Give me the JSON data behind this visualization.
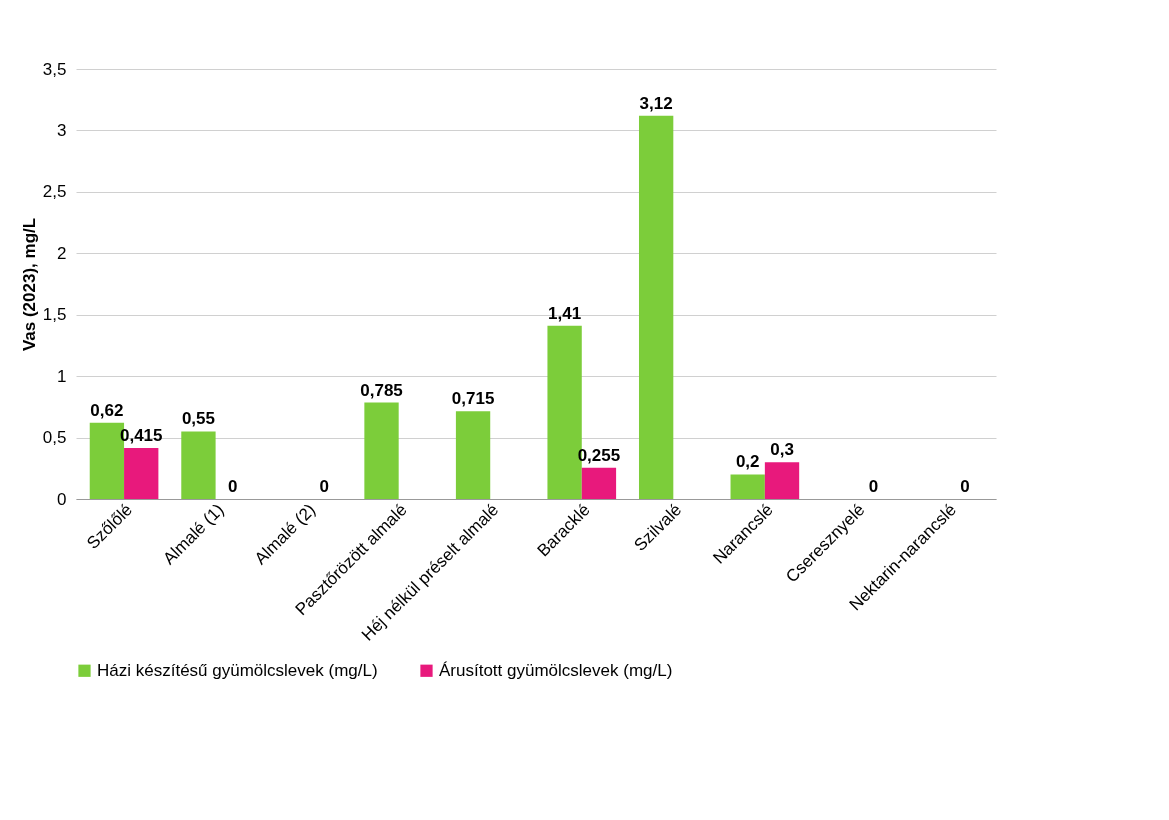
{
  "chart_data": {
    "type": "bar",
    "ylabel": "Vas (2023), mg/L",
    "categories": [
      "Szőlőlé",
      "Almalé (1)",
      "Almalé (2)",
      "Pasztőrözött almalé",
      "Héj nélkül préselt almalé",
      "Baracklé",
      "Szilvalé",
      "Narancslé",
      "Cseresznyelé",
      "Nektarin-narancslé"
    ],
    "series": [
      {
        "name": "Házi készítésű gyümölcslevek (mg/L)",
        "color": "#7ccd3a",
        "values": [
          0.62,
          0.55,
          null,
          0.785,
          0.715,
          1.41,
          3.12,
          0.2,
          null,
          null
        ],
        "value_labels": [
          "0,62",
          "0,55",
          null,
          "0,785",
          "0,715",
          "1,41",
          "3,12",
          "0,2",
          null,
          null
        ]
      },
      {
        "name": "Árusított gyümölcslevek (mg/L)",
        "color": "#e8197c",
        "values": [
          0.415,
          0,
          0,
          null,
          null,
          0.255,
          null,
          0.3,
          0,
          0
        ],
        "value_labels": [
          "0,415",
          "0",
          "0",
          null,
          null,
          "0,255",
          null,
          "0,3",
          "0",
          "0"
        ]
      }
    ],
    "ylim": [
      0,
      3.5
    ],
    "yticks": [
      0,
      {
        "value": 0.5,
        "label": "0,5"
      },
      1,
      {
        "value": 1.5,
        "label": "1,5"
      },
      2,
      {
        "value": 2.5,
        "label": "2,5"
      },
      3,
      {
        "value": 3.5,
        "label": "3,5"
      }
    ],
    "grid": "y",
    "legend": "bottom"
  }
}
